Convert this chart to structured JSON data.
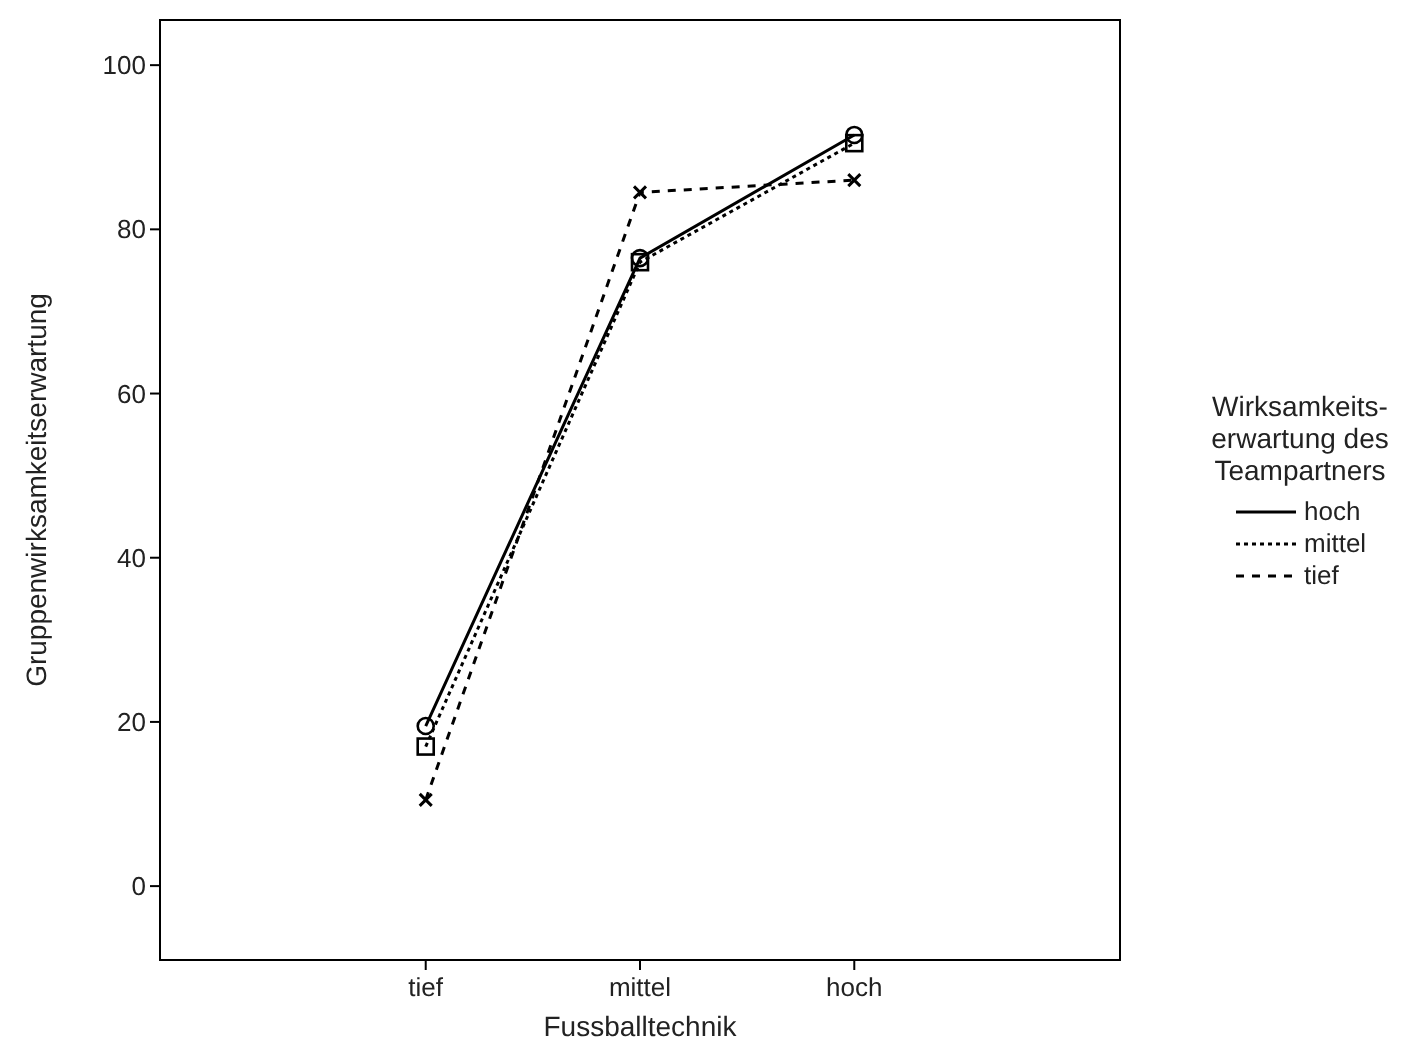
{
  "chart_data": {
    "type": "line",
    "xlabel": "Fussballtechnik",
    "ylabel": "Gruppenwirksamkeitserwartung",
    "legend_title": "Wirksamkeits-\nerwartung des\nTeampartners",
    "categories": [
      "tief",
      "mittel",
      "hoch"
    ],
    "series": [
      {
        "name": "hoch",
        "color": "#000000",
        "values": [
          19.5,
          76.5,
          91.5
        ],
        "marker": "circle",
        "line_style": "solid"
      },
      {
        "name": "mittel",
        "color": "#000000",
        "values": [
          17,
          76,
          90.5
        ],
        "marker": "square",
        "line_style": "dotted"
      },
      {
        "name": "tief",
        "color": "#000000",
        "values": [
          10.5,
          84.5,
          86
        ],
        "marker": "cross",
        "line_style": "dashed"
      }
    ],
    "ylim": [
      -9,
      105.5
    ],
    "yticks": [
      0,
      20,
      40,
      60,
      80,
      100
    ],
    "grid": false,
    "legend": "right"
  }
}
